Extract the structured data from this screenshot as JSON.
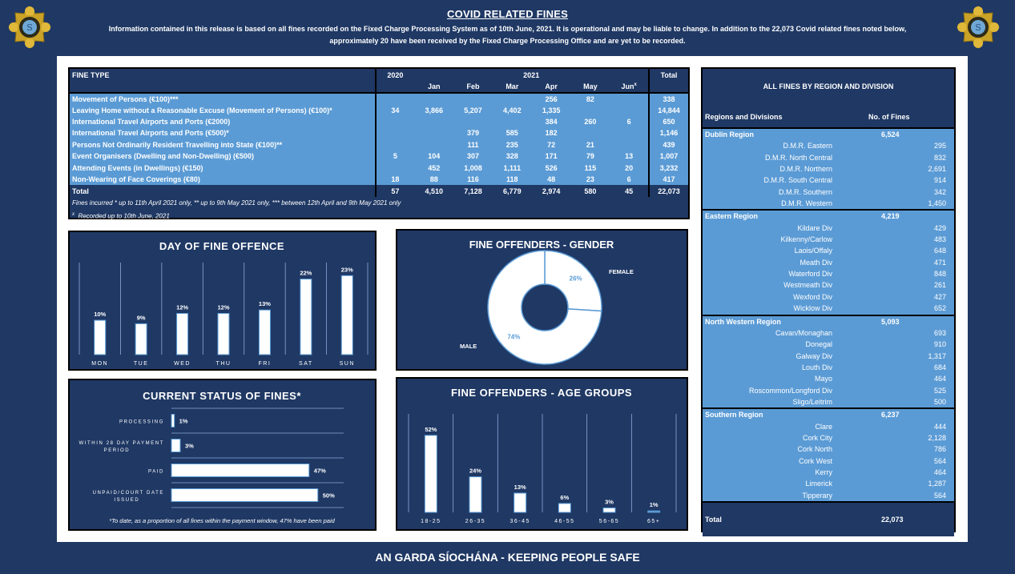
{
  "header": {
    "title": "COVID RELATED FINES",
    "subtitle_line1": "Information contained in this release is based on all fines recorded on the Fixed Charge Processing System as of 10th June, 2021.  It is operational and may be liable to change.  In addition to the 22,073 Covid related fines noted below,",
    "subtitle_line2": "approximately 20 have been received by the Fixed Charge Processing Office and are yet to be recorded."
  },
  "icons": {
    "crest_left": "garda-crest-icon",
    "crest_right": "garda-crest-icon"
  },
  "colors": {
    "navy": "#1f3864",
    "light_blue": "#5b9bd5",
    "white": "#ffffff",
    "gold": "#d4a017"
  },
  "fine_table": {
    "col_fine_type": "FINE TYPE",
    "col_2020": "2020",
    "col_2021": "2021",
    "col_total": "Total",
    "months": [
      "Jan",
      "Feb",
      "Mar",
      "Apr",
      "May",
      "Jun"
    ],
    "jun_marker": "x",
    "rows": [
      {
        "type": "Movement of Persons (€100)***",
        "y2020": "",
        "jan": "",
        "feb": "",
        "mar": "",
        "apr": "256",
        "may": "82",
        "jun": "",
        "total": "338"
      },
      {
        "type": "Leaving Home without a Reasonable Excuse (Movement of Persons) (€100)*",
        "y2020": "34",
        "jan": "3,866",
        "feb": "5,207",
        "mar": "4,402",
        "apr": "1,335",
        "may": "",
        "jun": "",
        "total": "14,844"
      },
      {
        "type": "International Travel Airports and Ports (€2000)",
        "y2020": "",
        "jan": "",
        "feb": "",
        "mar": "",
        "apr": "384",
        "may": "260",
        "jun": "6",
        "total": "650"
      },
      {
        "type": "International Travel Airports and Ports (€500)*",
        "y2020": "",
        "jan": "",
        "feb": "379",
        "mar": "585",
        "apr": "182",
        "may": "",
        "jun": "",
        "total": "1,146"
      },
      {
        "type": "Persons Not Ordinarily Resident Travelling into State (€100)**",
        "y2020": "",
        "jan": "",
        "feb": "111",
        "mar": "235",
        "apr": "72",
        "may": "21",
        "jun": "",
        "total": "439"
      },
      {
        "type": "Event Organisers (Dwelling and Non-Dwelling) (€500)",
        "y2020": "5",
        "jan": "104",
        "feb": "307",
        "mar": "328",
        "apr": "171",
        "may": "79",
        "jun": "13",
        "total": "1,007"
      },
      {
        "type": "Attending Events (in Dwellings) (€150)",
        "y2020": "",
        "jan": "452",
        "feb": "1,008",
        "mar": "1,111",
        "apr": "526",
        "may": "115",
        "jun": "20",
        "total": "3,232"
      },
      {
        "type": "Non-Wearing of Face Coverings (€80)",
        "y2020": "18",
        "jan": "88",
        "feb": "116",
        "mar": "118",
        "apr": "48",
        "may": "23",
        "jun": "6",
        "total": "417"
      }
    ],
    "total_row": {
      "type": "Total",
      "y2020": "57",
      "jan": "4,510",
      "feb": "7,128",
      "mar": "6,779",
      "apr": "2,974",
      "may": "580",
      "jun": "45",
      "total": "22,073"
    },
    "note1": "Fines incurred * up to 11th April 2021 only, ** up to 9th May 2021 only, *** between 12th April and 9th May 2021 only",
    "note2_marker": "x",
    "note2": "Recorded up to 10th June, 2021"
  },
  "chart_data": [
    {
      "type": "bar",
      "title": "DAY OF FINE OFFENCE",
      "categories": [
        "MON",
        "TUE",
        "WED",
        "THU",
        "FRI",
        "SAT",
        "SUN"
      ],
      "values": [
        10,
        9,
        12,
        12,
        13,
        22,
        23
      ],
      "labels": [
        "10%",
        "9%",
        "12%",
        "12%",
        "13%",
        "22%",
        "23%"
      ],
      "unit": "%",
      "xlabel": "",
      "ylabel": "",
      "ylim": [
        0,
        24
      ],
      "grid": "vertical separators"
    },
    {
      "type": "pie",
      "title": "FINE OFFENDERS - GENDER",
      "categories": [
        "FEMALE",
        "MALE"
      ],
      "values": [
        26,
        74
      ],
      "labels": [
        "26%",
        "74%"
      ],
      "unit": "%",
      "donut": true
    },
    {
      "type": "bar",
      "orientation": "horizontal",
      "title": "CURRENT STATUS OF FINES*",
      "categories": [
        "PROCESSING",
        "WITHIN 28 DAY PAYMENT PERIOD",
        "PAID",
        "UNPAID/COURT DATE ISSUED"
      ],
      "category_lines": [
        [
          "PROCESSING"
        ],
        [
          "WITHIN 28 DAY PAYMENT",
          "PERIOD"
        ],
        [
          "PAID"
        ],
        [
          "UNPAID/COURT DATE",
          "ISSUED"
        ]
      ],
      "values": [
        1,
        3,
        47,
        50
      ],
      "labels": [
        "1%",
        "3%",
        "47%",
        "50%"
      ],
      "unit": "%",
      "xlim": [
        0,
        60
      ],
      "footnote": "*To date, as a proportion of all fines within the payment window, 47% have been paid"
    },
    {
      "type": "bar",
      "title": "FINE OFFENDERS - AGE GROUPS",
      "categories": [
        "18-25",
        "26-35",
        "36-45",
        "46-55",
        "56-65",
        "65+"
      ],
      "values": [
        52,
        24,
        13,
        6,
        3,
        1
      ],
      "labels": [
        "52%",
        "24%",
        "13%",
        "6%",
        "3%",
        "1%"
      ],
      "unit": "%",
      "ylim": [
        0,
        60
      ],
      "grid": "vertical separators"
    }
  ],
  "region_table": {
    "title": "ALL FINES BY REGION AND DIVISION",
    "col1": "Regions and Divisions",
    "col2": "No. of Fines",
    "regions": [
      {
        "name": "Dublin Region",
        "total": "6,524",
        "divisions": [
          {
            "name": "D.M.R. Eastern",
            "value": "295"
          },
          {
            "name": "D.M.R. North Central",
            "value": "832"
          },
          {
            "name": "D.M.R. Northern",
            "value": "2,691"
          },
          {
            "name": "D.M.R. South Central",
            "value": "914"
          },
          {
            "name": "D.M.R. Southern",
            "value": "342"
          },
          {
            "name": "D.M.R. Western",
            "value": "1,450"
          }
        ]
      },
      {
        "name": "Eastern Region",
        "total": "4,219",
        "divisions": [
          {
            "name": "Kildare Div",
            "value": "429"
          },
          {
            "name": "Kilkenny/Carlow",
            "value": "483"
          },
          {
            "name": "Laois/Offaly",
            "value": "648"
          },
          {
            "name": "Meath Div",
            "value": "471"
          },
          {
            "name": "Waterford Div",
            "value": "848"
          },
          {
            "name": "Westmeath Div",
            "value": "261"
          },
          {
            "name": "Wexford Div",
            "value": "427"
          },
          {
            "name": "Wicklow Div",
            "value": "652"
          }
        ]
      },
      {
        "name": "North Western Region",
        "total": "5,093",
        "divisions": [
          {
            "name": "Cavan/Monaghan",
            "value": "693"
          },
          {
            "name": "Donegal",
            "value": "910"
          },
          {
            "name": "Galway Div",
            "value": "1,317"
          },
          {
            "name": "Louth Div",
            "value": "684"
          },
          {
            "name": "Mayo",
            "value": "464"
          },
          {
            "name": "Roscommon/Longford Div",
            "value": "525"
          },
          {
            "name": "Sligo/Leitrim",
            "value": "500"
          }
        ]
      },
      {
        "name": "Southern Region",
        "total": "6,237",
        "divisions": [
          {
            "name": "Clare",
            "value": "444"
          },
          {
            "name": "Cork City",
            "value": "2,128"
          },
          {
            "name": "Cork North",
            "value": "786"
          },
          {
            "name": "Cork West",
            "value": "564"
          },
          {
            "name": "Kerry",
            "value": "464"
          },
          {
            "name": "Limerick",
            "value": "1,287"
          },
          {
            "name": "Tipperary",
            "value": "564"
          }
        ]
      }
    ],
    "total_label": "Total",
    "total_value": "22,073"
  },
  "footer": {
    "text": "AN GARDA SÍOCHÁNA - KEEPING PEOPLE SAFE"
  }
}
